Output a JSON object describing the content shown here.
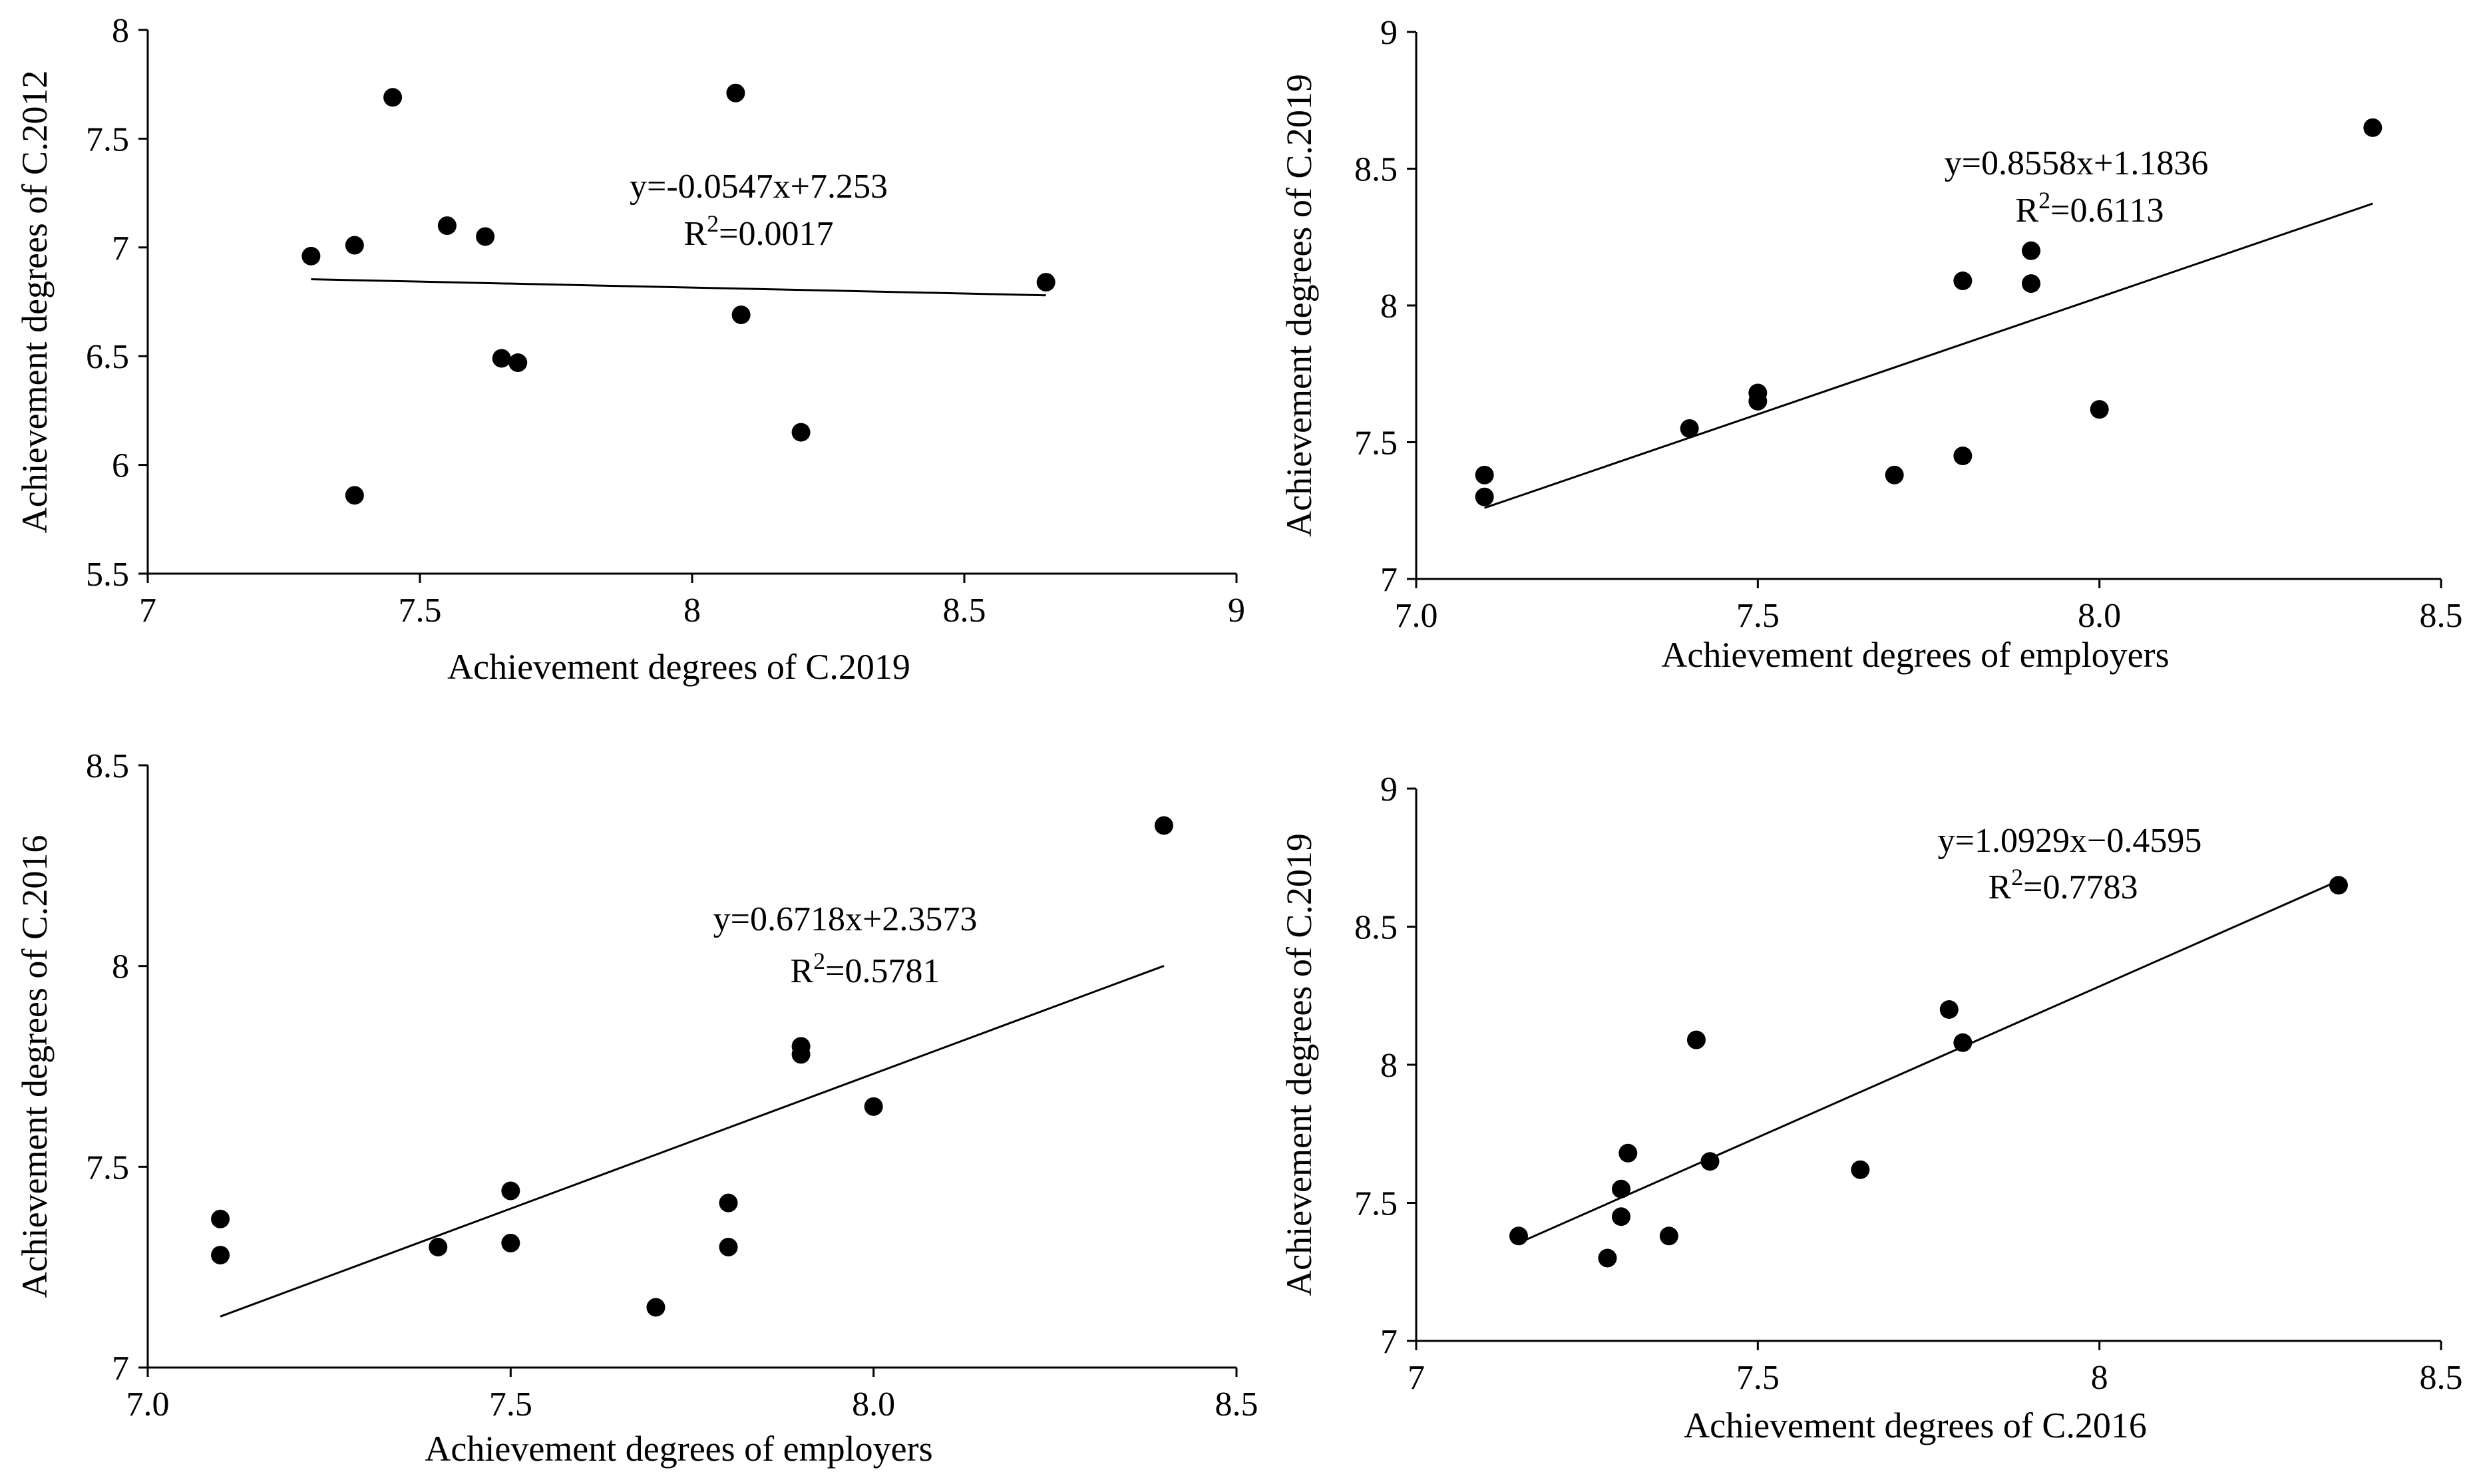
{
  "chart_data": [
    {
      "type": "scatter",
      "xlabel": "Achievement degrees of C.2019",
      "ylabel": "Achievement degrees of C.2012",
      "xlim": [
        7,
        9
      ],
      "ylim": [
        5.5,
        8
      ],
      "xticks": [
        "7",
        "7.5",
        "8",
        "8.5",
        "9"
      ],
      "yticks": [
        "5.5",
        "6",
        "6.5",
        "7",
        "7.5",
        "8"
      ],
      "x": [
        7.3,
        7.38,
        7.38,
        7.45,
        7.55,
        7.62,
        7.65,
        7.68,
        8.08,
        8.09,
        8.2,
        8.65
      ],
      "y": [
        6.96,
        7.01,
        5.86,
        7.69,
        7.1,
        7.05,
        6.49,
        6.47,
        7.71,
        6.69,
        6.15,
        6.84
      ],
      "trendline": {
        "slope": -0.0547,
        "intercept": 7.253,
        "x_range": [
          7.3,
          8.65
        ]
      },
      "equation": "y=-0.0547x+7.253",
      "r2_prefix": "R",
      "r2_sup": "2",
      "r2_value": "=0.0017"
    },
    {
      "type": "scatter",
      "xlabel": "Achievement degrees of employers",
      "ylabel": "Achievement degrees of C.2019",
      "xlim": [
        7.0,
        8.5
      ],
      "ylim": [
        7,
        9
      ],
      "xticks": [
        "7.0",
        "7.5",
        "8.0",
        "8.5"
      ],
      "yticks": [
        "7",
        "7.5",
        "8",
        "8.5",
        "9"
      ],
      "x": [
        7.1,
        7.1,
        7.4,
        7.5,
        7.5,
        7.7,
        7.8,
        7.8,
        7.9,
        7.9,
        8.0,
        8.4
      ],
      "y": [
        7.38,
        7.3,
        7.55,
        7.68,
        7.65,
        7.38,
        8.09,
        7.45,
        8.2,
        8.08,
        7.62,
        8.65
      ],
      "trendline": {
        "slope": 0.8558,
        "intercept": 1.1836,
        "x_range": [
          7.1,
          8.4
        ]
      },
      "equation": "y=0.8558x+1.1836",
      "r2_prefix": "R",
      "r2_sup": "2",
      "r2_value": "=0.6113"
    },
    {
      "type": "scatter",
      "xlabel": "Achievement degrees of employers",
      "ylabel": "Achievement degrees of C.2016",
      "xlim": [
        7.0,
        8.5
      ],
      "ylim": [
        7,
        8.5
      ],
      "xticks": [
        "7.0",
        "7.5",
        "8.0",
        "8.5"
      ],
      "yticks": [
        "7",
        "7.5",
        "8",
        "8.5"
      ],
      "x": [
        7.1,
        7.1,
        7.4,
        7.5,
        7.5,
        7.7,
        7.8,
        7.8,
        7.9,
        7.9,
        8.0,
        8.4
      ],
      "y": [
        7.37,
        7.28,
        7.3,
        7.44,
        7.31,
        7.15,
        7.41,
        7.3,
        7.8,
        7.78,
        7.65,
        8.35
      ],
      "trendline": {
        "slope": 0.6718,
        "intercept": 2.3573,
        "x_range": [
          7.1,
          8.4
        ]
      },
      "equation": "y=0.6718x+2.3573",
      "r2_prefix": "R",
      "r2_sup": "2",
      "r2_value": "=0.5781"
    },
    {
      "type": "scatter",
      "xlabel": "Achievement degrees of C.2016",
      "ylabel": "Achievement degrees of C.2019",
      "xlim": [
        7,
        8.5
      ],
      "ylim": [
        7,
        9
      ],
      "xticks": [
        "7",
        "7.5",
        "8",
        "8.5"
      ],
      "yticks": [
        "7",
        "7.5",
        "8",
        "8.5",
        "9"
      ],
      "x": [
        7.15,
        7.28,
        7.3,
        7.3,
        7.31,
        7.37,
        7.41,
        7.43,
        7.65,
        7.78,
        7.8,
        8.35
      ],
      "y": [
        7.38,
        7.3,
        7.55,
        7.45,
        7.68,
        7.38,
        8.09,
        7.65,
        7.62,
        8.2,
        8.08,
        8.65
      ],
      "trendline": {
        "slope": 1.0929,
        "intercept": -0.4595,
        "x_range": [
          7.15,
          8.35
        ]
      },
      "equation": "y=1.0929x−0.4595",
      "r2_prefix": "R",
      "r2_sup": "2",
      "r2_value": "=0.7783"
    }
  ]
}
